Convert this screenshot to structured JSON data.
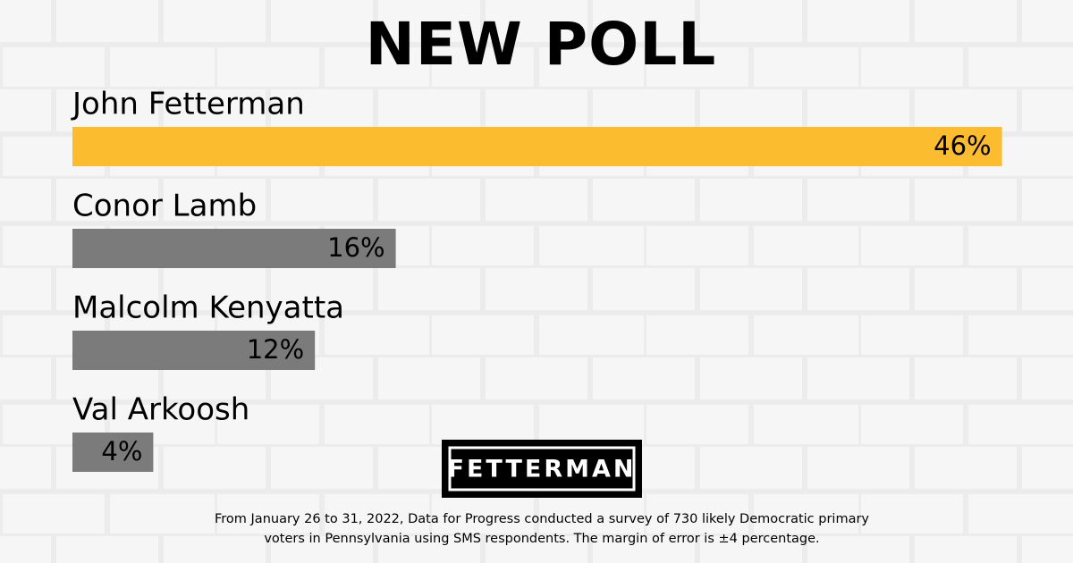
{
  "chart_data": {
    "type": "bar",
    "orientation": "horizontal",
    "title": "NEW POLL",
    "categories": [
      "John Fetterman",
      "Conor Lamb",
      "Malcolm Kenyatta",
      "Val Arkoosh"
    ],
    "values": [
      46,
      16,
      12,
      4
    ],
    "value_labels": [
      "46%",
      "16%",
      "12%",
      "4%"
    ],
    "colors": [
      "#fbbd2f",
      "#7b7b7b",
      "#7b7b7b",
      "#7b7b7b"
    ],
    "logo": "FETTERMAN",
    "footnote": [
      "From January 26 to 31, 2022, Data for Progress conducted a survey of 730 likely Democratic primary",
      "voters in Pennsylvania using SMS respondents. The margin of error is ±4 percentage."
    ]
  }
}
